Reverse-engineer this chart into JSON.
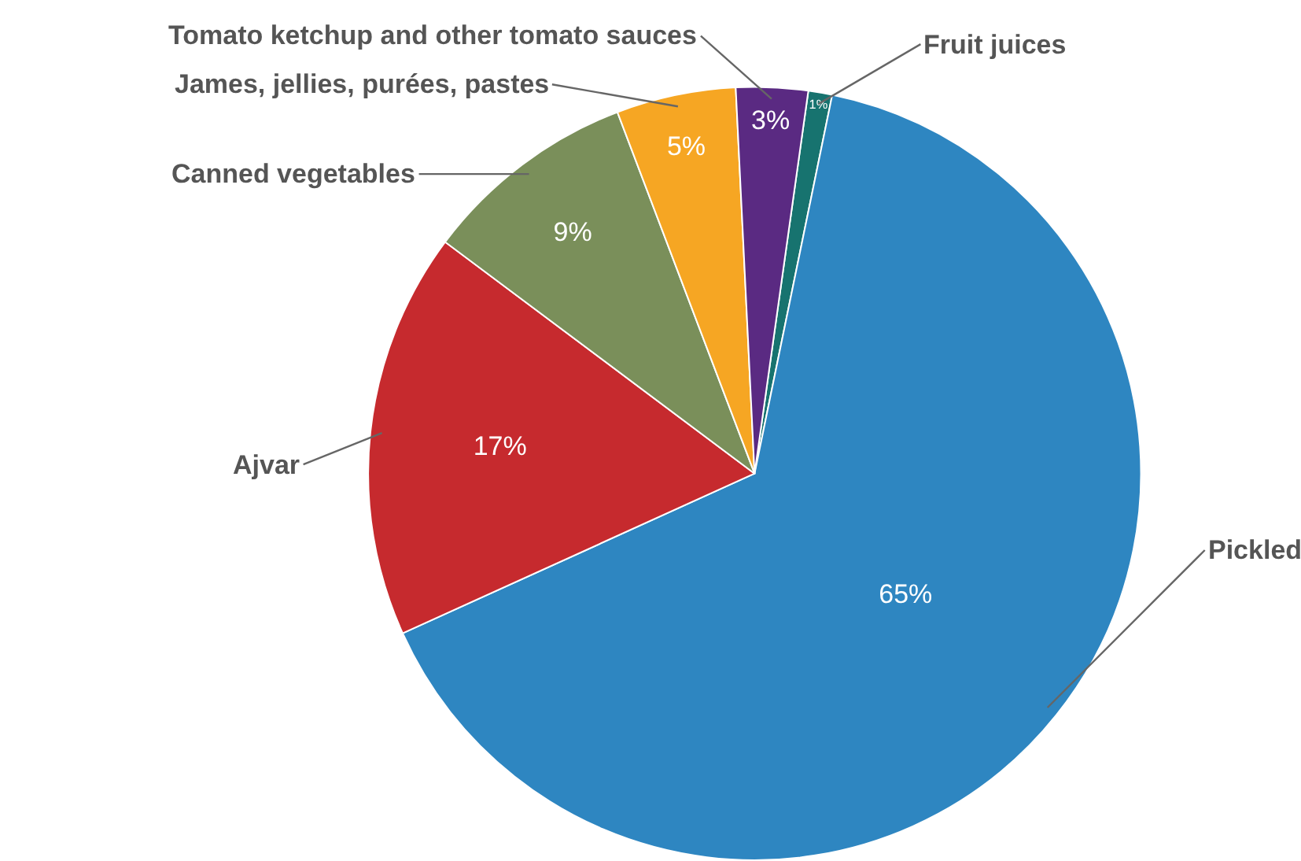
{
  "chart_data": {
    "type": "pie",
    "categories": [
      "Fruit juices",
      "Pickled",
      "Ajvar",
      "Canned vegetables",
      "James, jellies, purées, pastes",
      "Tomato ketchup and other tomato sauces"
    ],
    "values": [
      1,
      65,
      17,
      9,
      5,
      3
    ],
    "value_labels": [
      "1%",
      "65%",
      "17%",
      "9%",
      "5%",
      "3%"
    ],
    "colors": [
      "#17736f",
      "#2e86c1",
      "#c62a2e",
      "#7a8f5a",
      "#f6a623",
      "#5a2a82"
    ]
  }
}
